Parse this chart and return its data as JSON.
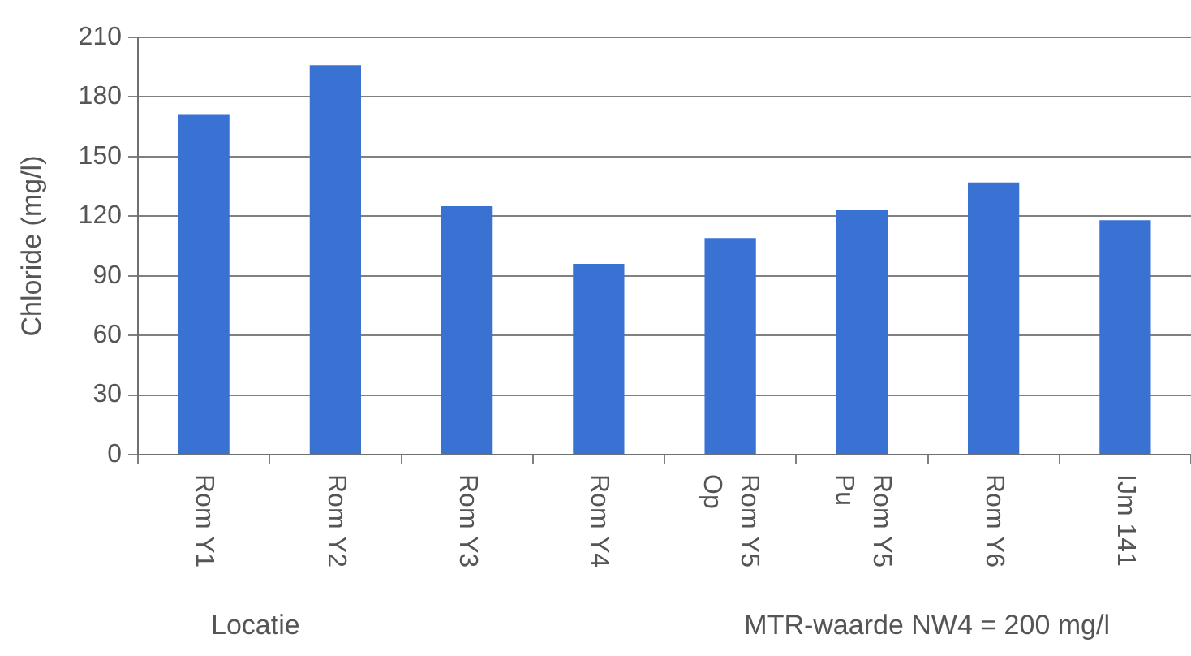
{
  "chart_data": {
    "type": "bar",
    "categories": [
      "Rom Y1",
      "Rom Y2",
      "Rom Y3",
      "Rom Y4",
      "Rom Y5 Op",
      "Rom Y5 Pu",
      "Rom Y6",
      "IJm 141"
    ],
    "values": [
      171,
      196,
      125,
      96,
      109,
      123,
      137,
      118
    ],
    "color": "#3a72d4",
    "ylabel": "Chloride (mg/l)",
    "xlabel": "Locatie",
    "annotations": [
      "MTR-waarde NW4 = 200 mg/l"
    ],
    "ylim": [
      0,
      210
    ],
    "yticks": [
      0,
      30,
      60,
      90,
      120,
      150,
      180,
      210
    ],
    "grid": "y"
  }
}
